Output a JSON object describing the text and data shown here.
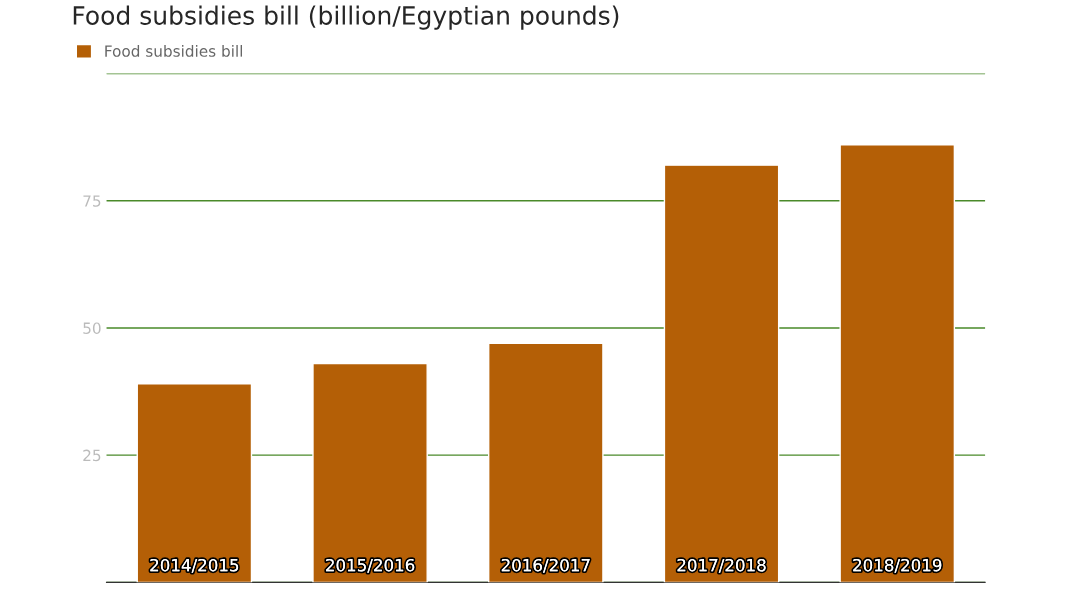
{
  "chart_data": {
    "type": "bar",
    "title": "Food subsidies bill (billion/Egyptian pounds)",
    "categories": [
      "2014/2015",
      "2015/2016",
      "2016/2017",
      "2017/2018",
      "2018/2019"
    ],
    "series": [
      {
        "name": "Food subsidies bill",
        "color": "#b45f06",
        "values": [
          39,
          43,
          47,
          82,
          86
        ]
      }
    ],
    "ylim": [
      0,
      100
    ],
    "yticks": [
      {
        "value": 0,
        "label": null
      },
      25,
      50,
      75,
      {
        "value": 100,
        "label": null
      }
    ],
    "grid": "y",
    "legend": "top left"
  }
}
